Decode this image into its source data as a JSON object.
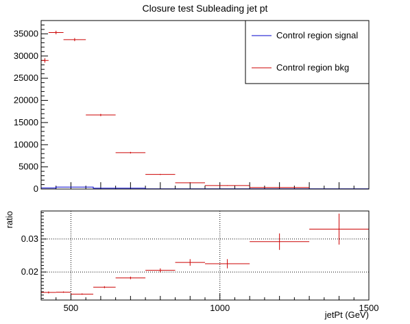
{
  "chart_data": [
    {
      "type": "scatter",
      "title": "Closure test Subleading jet pt",
      "xlim": [
        400,
        1500
      ],
      "ylim": [
        0,
        38000
      ],
      "yticks": [
        0,
        5000,
        10000,
        15000,
        20000,
        25000,
        30000,
        35000
      ],
      "ytick_labels": [
        "0",
        "5000",
        "10000",
        "15000",
        "20000",
        "25000",
        "30000",
        "35000"
      ],
      "legend": {
        "placement": "top-right",
        "entries": [
          "Control region signal",
          "Control region bkg"
        ]
      },
      "colors": {
        "signal": "#0000cc",
        "bkg": "#cc0000"
      },
      "series": [
        {
          "name": "Control region signal",
          "bins": [
            {
              "lo": 400,
              "hi": 450,
              "y": 250
            },
            {
              "lo": 450,
              "hi": 575,
              "y": 450
            },
            {
              "lo": 575,
              "hi": 750,
              "y": 200
            },
            {
              "lo": 750,
              "hi": 1500,
              "y": 60
            }
          ]
        },
        {
          "name": "Control region bkg",
          "points": [
            {
              "lo": 400,
              "hi": 425,
              "y": 29000,
              "err": 500
            },
            {
              "lo": 425,
              "hi": 475,
              "y": 35300,
              "err": 400
            },
            {
              "lo": 475,
              "hi": 550,
              "y": 33700,
              "err": 350
            },
            {
              "lo": 550,
              "hi": 650,
              "y": 16700,
              "err": 250
            },
            {
              "lo": 650,
              "hi": 750,
              "y": 8200,
              "err": 180
            },
            {
              "lo": 750,
              "hi": 850,
              "y": 3300,
              "err": 120
            },
            {
              "lo": 850,
              "hi": 950,
              "y": 1400,
              "err": 80
            },
            {
              "lo": 950,
              "hi": 1100,
              "y": 800,
              "err": 70
            },
            {
              "lo": 1100,
              "hi": 1300,
              "y": 350,
              "err": 50
            }
          ]
        }
      ]
    },
    {
      "type": "scatter",
      "ylabel": "ratio",
      "xlabel": "jetPt (GeV)",
      "xlim": [
        400,
        1500
      ],
      "ylim": [
        0.0115,
        0.0385
      ],
      "xticks": [
        500,
        1000,
        1500
      ],
      "xtick_labels": [
        "500",
        "1000",
        "1500"
      ],
      "yticks": [
        0.02,
        0.03
      ],
      "ytick_labels": [
        "0.02",
        "0.03"
      ],
      "grid": true,
      "colors": {
        "ratio": "#cc0000"
      },
      "series": [
        {
          "name": "",
          "points": [
            {
              "lo": 400,
              "hi": 450,
              "y": 0.0138,
              "err": 0.0003
            },
            {
              "lo": 450,
              "hi": 500,
              "y": 0.0139,
              "err": 0.0002
            },
            {
              "lo": 500,
              "hi": 575,
              "y": 0.0133,
              "err": 0.0002
            },
            {
              "lo": 575,
              "hi": 650,
              "y": 0.0154,
              "err": 0.0003
            },
            {
              "lo": 650,
              "hi": 750,
              "y": 0.0182,
              "err": 0.0004
            },
            {
              "lo": 750,
              "hi": 850,
              "y": 0.0205,
              "err": 0.0006
            },
            {
              "lo": 850,
              "hi": 950,
              "y": 0.0229,
              "err": 0.001
            },
            {
              "lo": 950,
              "hi": 1100,
              "y": 0.0225,
              "err": 0.0014
            },
            {
              "lo": 1100,
              "hi": 1300,
              "y": 0.0292,
              "err": 0.0025
            },
            {
              "lo": 1300,
              "hi": 1500,
              "y": 0.033,
              "err": 0.0047
            }
          ]
        }
      ]
    }
  ]
}
